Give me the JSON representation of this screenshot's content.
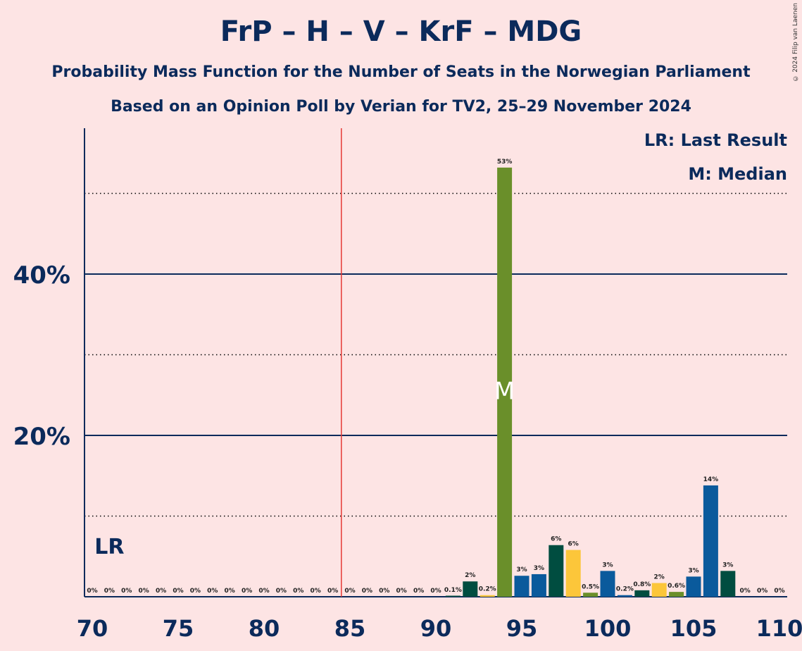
{
  "title": "FrP – H – V – KrF – MDG",
  "subtitle1": "Probability Mass Function for the Number of Seats in the Norwegian Parliament",
  "subtitle2": "Based on an Opinion Poll by Verian for TV2, 25–29 November 2024",
  "copyright": "© 2024 Filip van Laenen",
  "legend": {
    "lr": "LR: Last Result",
    "m": "M: Median"
  },
  "chart_data": {
    "type": "bar",
    "xlabel": "",
    "ylabel": "",
    "xlim": [
      70,
      110
    ],
    "ylim": [
      0,
      58
    ],
    "x_ticks": [
      70,
      75,
      80,
      85,
      90,
      95,
      100,
      105,
      110
    ],
    "y_ticks": [
      {
        "value": 20,
        "label": "20%"
      },
      {
        "value": 40,
        "label": "40%"
      }
    ],
    "majority_line": 84.5,
    "last_result": {
      "x": 71,
      "label": "LR"
    },
    "median": {
      "x": 94,
      "label": "M"
    },
    "colors": {
      "background": "#fde4e4",
      "axis": "#0b2a5b",
      "majority": "#e53935",
      "parties": [
        "#6a8f2a",
        "#0a5a9c",
        "#004d40",
        "#fcc63a"
      ]
    },
    "points": [
      {
        "x": 70,
        "value": 0,
        "label": "0%",
        "color": ""
      },
      {
        "x": 71,
        "value": 0,
        "label": "0%",
        "color": ""
      },
      {
        "x": 72,
        "value": 0,
        "label": "0%",
        "color": ""
      },
      {
        "x": 73,
        "value": 0,
        "label": "0%",
        "color": ""
      },
      {
        "x": 74,
        "value": 0,
        "label": "0%",
        "color": ""
      },
      {
        "x": 75,
        "value": 0,
        "label": "0%",
        "color": ""
      },
      {
        "x": 76,
        "value": 0,
        "label": "0%",
        "color": ""
      },
      {
        "x": 77,
        "value": 0,
        "label": "0%",
        "color": ""
      },
      {
        "x": 78,
        "value": 0,
        "label": "0%",
        "color": ""
      },
      {
        "x": 79,
        "value": 0,
        "label": "0%",
        "color": ""
      },
      {
        "x": 80,
        "value": 0,
        "label": "0%",
        "color": ""
      },
      {
        "x": 81,
        "value": 0,
        "label": "0%",
        "color": ""
      },
      {
        "x": 82,
        "value": 0,
        "label": "0%",
        "color": ""
      },
      {
        "x": 83,
        "value": 0,
        "label": "0%",
        "color": ""
      },
      {
        "x": 84,
        "value": 0,
        "label": "0%",
        "color": ""
      },
      {
        "x": 85,
        "value": 0,
        "label": "0%",
        "color": ""
      },
      {
        "x": 86,
        "value": 0,
        "label": "0%",
        "color": ""
      },
      {
        "x": 87,
        "value": 0,
        "label": "0%",
        "color": ""
      },
      {
        "x": 88,
        "value": 0,
        "label": "0%",
        "color": ""
      },
      {
        "x": 89,
        "value": 0,
        "label": "0%",
        "color": ""
      },
      {
        "x": 90,
        "value": 0,
        "label": "0%",
        "color": ""
      },
      {
        "x": 91,
        "value": 0.1,
        "label": "0.1%",
        "color": "#004d40"
      },
      {
        "x": 92,
        "value": 1.9,
        "label": "2%",
        "color": "#004d40"
      },
      {
        "x": 93,
        "value": 0.2,
        "label": "0.2%",
        "color": "#fcc63a"
      },
      {
        "x": 94,
        "value": 53.2,
        "label": "53%",
        "color": "#6a8f2a"
      },
      {
        "x": 95,
        "value": 2.6,
        "label": "3%",
        "color": "#0a5a9c"
      },
      {
        "x": 96,
        "value": 2.8,
        "label": "3%",
        "color": "#0a5a9c"
      },
      {
        "x": 97,
        "value": 6.4,
        "label": "6%",
        "color": "#004d40"
      },
      {
        "x": 98,
        "value": 5.8,
        "label": "6%",
        "color": "#fcc63a"
      },
      {
        "x": 99,
        "value": 0.5,
        "label": "0.5%",
        "color": "#6a8f2a"
      },
      {
        "x": 100,
        "value": 3.2,
        "label": "3%",
        "color": "#0a5a9c"
      },
      {
        "x": 101,
        "value": 0.2,
        "label": "0.2%",
        "color": "#0a5a9c"
      },
      {
        "x": 102,
        "value": 0.8,
        "label": "0.8%",
        "color": "#004d40"
      },
      {
        "x": 103,
        "value": 1.7,
        "label": "2%",
        "color": "#fcc63a"
      },
      {
        "x": 104,
        "value": 0.6,
        "label": "0.6%",
        "color": "#6a8f2a"
      },
      {
        "x": 105,
        "value": 2.5,
        "label": "3%",
        "color": "#0a5a9c"
      },
      {
        "x": 106,
        "value": 13.8,
        "label": "14%",
        "color": "#0a5a9c"
      },
      {
        "x": 107,
        "value": 3.2,
        "label": "3%",
        "color": "#004d40"
      },
      {
        "x": 108,
        "value": 0,
        "label": "0%",
        "color": ""
      },
      {
        "x": 109,
        "value": 0,
        "label": "0%",
        "color": ""
      },
      {
        "x": 110,
        "value": 0,
        "label": "0%",
        "color": ""
      }
    ]
  }
}
